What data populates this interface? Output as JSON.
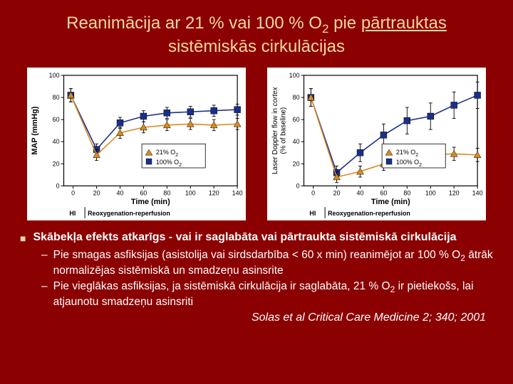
{
  "title": {
    "pre": "Reanimācija ar 21 % vai 100 % O",
    "sub": "2",
    "mid": " pie ",
    "underlined": "pārtrauktas",
    "line2": "sistēmiskās cirkulācijas"
  },
  "chart_left": {
    "type": "line",
    "background_color": "#ffffff",
    "plot_bg": "#ffffff",
    "axis_color": "#000000",
    "ylabel": "MAP (mmHg)",
    "xlabel": "Time (min)",
    "hi_label": "HI",
    "reox_label": "Reoxygenation-reperfusion",
    "xlim": [
      0,
      140
    ],
    "xtick_step": 20,
    "ylim": [
      0,
      100
    ],
    "ytick_step": 20,
    "label_fontsize": 11,
    "tick_fontsize": 9,
    "legend": {
      "a": "21% O",
      "b": "100% O",
      "sub": "2"
    },
    "series": {
      "s21": {
        "color": "#d98b1f",
        "marker": "triangle",
        "marker_size": 5,
        "x": [
          -2,
          20,
          40,
          60,
          80,
          100,
          120,
          140
        ],
        "y": [
          82,
          28,
          48,
          53,
          55,
          56,
          55,
          56
        ],
        "err": [
          6,
          5,
          5,
          5,
          5,
          5,
          5,
          5
        ]
      },
      "s100": {
        "color": "#1b2f8a",
        "marker": "square",
        "marker_size": 5,
        "x": [
          -2,
          20,
          40,
          60,
          80,
          100,
          120,
          140
        ],
        "y": [
          82,
          33,
          57,
          63,
          66,
          67,
          68,
          69
        ],
        "err": [
          6,
          5,
          5,
          5,
          5,
          5,
          5,
          5
        ]
      }
    }
  },
  "chart_right": {
    "type": "line",
    "background_color": "#ffffff",
    "ylabel_a": "Laser Doppler flow in ",
    "ylabel_b": "cortex",
    "ylabel_c": "(% of baseline)",
    "xlabel": "Time (min)",
    "hi_label": "HI",
    "reox_label": "Reoxygenation-reperfusion",
    "xlim": [
      0,
      140
    ],
    "xtick_step": 20,
    "ylim": [
      0,
      100
    ],
    "ytick_step": 20,
    "label_fontsize": 11,
    "tick_fontsize": 9,
    "legend": {
      "a": "21% O",
      "b": "100% O",
      "sub": "2"
    },
    "series": {
      "s21": {
        "color": "#d98b1f",
        "marker": "triangle",
        "marker_size": 5,
        "x": [
          -2,
          20,
          40,
          60,
          80,
          100,
          120,
          140
        ],
        "y": [
          80,
          8,
          13,
          20,
          26,
          28,
          29,
          28
        ],
        "err": [
          8,
          5,
          5,
          6,
          6,
          6,
          6,
          6
        ]
      },
      "s100": {
        "color": "#1b2f8a",
        "marker": "square",
        "marker_size": 5,
        "x": [
          -2,
          20,
          40,
          60,
          80,
          100,
          120,
          140
        ],
        "y": [
          80,
          12,
          30,
          46,
          59,
          63,
          73,
          82
        ],
        "err": [
          8,
          6,
          8,
          10,
          12,
          12,
          12,
          12
        ]
      }
    }
  },
  "bullets": {
    "main": "Skābekļa efekts atkarīgs  - vai ir saglabāta vai pārtraukta sistēmiskā cirkulācija",
    "sub1a": "Pie smagas asfiksijas (asistolija vai sirdsdarbība < 60 x min) reanimējot ar 100 % O",
    "sub1b": " ātrāk normalizējas sistēmiskā un smadzeņu asinsrite",
    "sub2a": "Pie vieglākas asfiksijas, ja sistēmiskā cirkulācija ir saglabāta, 21 % O",
    "sub2b": " ir pietiekošs, lai atjaunotu smadzeņu asinsriti",
    "subscript": "2"
  },
  "citation": "Solas et al Critical Care Medicine 2; 340; 2001"
}
